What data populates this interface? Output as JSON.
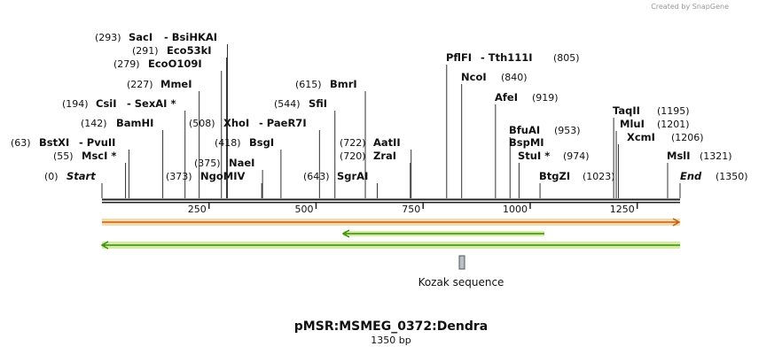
{
  "credit": "Created by SnapGene",
  "map": {
    "title": "pMSR:MSMEG_0372:Dendra",
    "size_label": "1350 bp",
    "ruler_ticks": [
      250,
      500,
      750,
      1000,
      1250
    ],
    "ends": [
      {
        "name": "Start",
        "site": {
          "value": 0,
          "label": "(0)"
        }
      },
      {
        "name": "End",
        "site": {
          "value": 1350,
          "label": "(1350)"
        }
      }
    ],
    "enzymes": [
      {
        "names": [
          "MscI *"
        ],
        "site": {
          "value": 55,
          "label": "(55)"
        }
      },
      {
        "names": [
          "BstXI",
          "- PvuII"
        ],
        "site": {
          "value": 63,
          "label": "(63)"
        }
      },
      {
        "names": [
          "BamHI"
        ],
        "site": {
          "value": 142,
          "label": "(142)"
        }
      },
      {
        "names": [
          "CsiI",
          "- SexAI *"
        ],
        "site": {
          "value": 194,
          "label": "(194)"
        }
      },
      {
        "names": [
          "MmeI"
        ],
        "site": {
          "value": 227,
          "label": "(227)"
        }
      },
      {
        "names": [
          "EcoO109I"
        ],
        "site": {
          "value": 279,
          "label": "(279)"
        }
      },
      {
        "names": [
          "Eco53kI"
        ],
        "site": {
          "value": 291,
          "label": "(291)"
        }
      },
      {
        "names": [
          "SacI",
          "- BsiHKAI"
        ],
        "site": {
          "value": 293,
          "label": "(293)"
        }
      },
      {
        "names": [
          "NgoMIV"
        ],
        "site": {
          "value": 373,
          "label": "(373)"
        }
      },
      {
        "names": [
          "NaeI"
        ],
        "site": {
          "value": 375,
          "label": "(375)"
        }
      },
      {
        "names": [
          "BsgI"
        ],
        "site": {
          "value": 418,
          "label": "(418)"
        }
      },
      {
        "names": [
          "XhoI",
          "- PaeR7I"
        ],
        "site": {
          "value": 508,
          "label": "(508)"
        }
      },
      {
        "names": [
          "SfiI"
        ],
        "site": {
          "value": 544,
          "label": "(544)"
        }
      },
      {
        "names": [
          "BmrI"
        ],
        "site": {
          "value": 615,
          "label": "(615)"
        }
      },
      {
        "names": [
          "SgrAI"
        ],
        "site": {
          "value": 643,
          "label": "(643)"
        }
      },
      {
        "names": [
          "ZraI"
        ],
        "site": {
          "value": 720,
          "label": "(720)"
        }
      },
      {
        "names": [
          "AatII"
        ],
        "site": {
          "value": 722,
          "label": "(722)"
        }
      },
      {
        "names": [
          "PflFI",
          "- Tth111I"
        ],
        "site": {
          "value": 805,
          "label": "(805)"
        }
      },
      {
        "names": [
          "NcoI"
        ],
        "site": {
          "value": 840,
          "label": "(840)"
        }
      },
      {
        "names": [
          "AfeI"
        ],
        "site": {
          "value": 919,
          "label": "(919)"
        }
      },
      {
        "names": [
          "BfuAI"
        ],
        "site": {
          "value": 953,
          "label": "(953)"
        }
      },
      {
        "names": [
          "BspMI"
        ]
      },
      {
        "names": [
          "StuI *"
        ],
        "site": {
          "value": 974,
          "label": "(974)"
        }
      },
      {
        "names": [
          "BtgZI"
        ],
        "site": {
          "value": 1023,
          "label": "(1023)"
        }
      },
      {
        "names": [
          "TaqII"
        ],
        "site": {
          "value": 1195,
          "label": "(1195)"
        }
      },
      {
        "names": [
          "MluI"
        ],
        "site": {
          "value": 1201,
          "label": "(1201)"
        }
      },
      {
        "names": [
          "XcmI"
        ],
        "site": {
          "value": 1206,
          "label": "(1206)"
        }
      },
      {
        "names": [
          "MslI"
        ],
        "site": {
          "value": 1321,
          "label": "(1321)"
        }
      }
    ],
    "feature_label": "Kozak sequence"
  }
}
